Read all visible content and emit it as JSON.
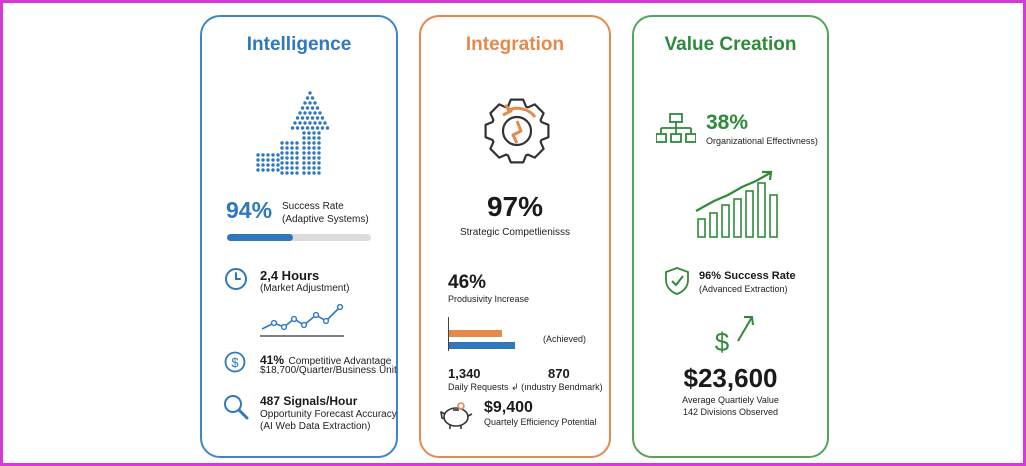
{
  "colors": {
    "blue": "#2f78c0",
    "orange": "#e58a4d",
    "green": "#2f8a3a",
    "frame": "#d63ad6"
  },
  "intelligence": {
    "title": "Intelligence",
    "success_value": "94%",
    "success_label": "Success Rate",
    "success_sub": "(Adaptive Systems)",
    "progress_fraction": 0.46,
    "hours_value": "2,4 Hours",
    "hours_sub": "(Market Adjustment)",
    "adv_value": "41%",
    "adv_label": "Competitive Advantage",
    "adv_sub": "$18,700/Quarter/Business Unit",
    "signals_value": "487 Signals/Hour",
    "signals_sub1": "Opportunity Forecast Accuracy",
    "signals_sub2": "(AI Web Data Extraction)",
    "icons": [
      "dotted-arrow-icon",
      "clock-icon",
      "dollar-circle-icon",
      "magnifier-icon"
    ]
  },
  "integration": {
    "title": "Integration",
    "main_value": "97%",
    "main_label": "Strategic Competlienisss",
    "prod_value": "46%",
    "prod_label": "Produsivity Increase",
    "bar_achieved_label": "(Achieved)",
    "bar_values": [
      0.63,
      0.79
    ],
    "left_value": "1,340",
    "right_value": "870",
    "compare_label": "Daily Requests ↲ (ındustry Bendmark)",
    "savings_value": "$9,400",
    "savings_label": "Quartely Efficiency Potential",
    "icons": [
      "gear-icon",
      "piggy-bank-icon"
    ]
  },
  "value_creation": {
    "title": "Value Creation",
    "org_value": "38%",
    "org_label": "Organizational Effectivness)",
    "rate_value": "96% Success Rate",
    "rate_sub": "(Advanced Extraction)",
    "money_value": "$23,600",
    "money_label1": "Average Quartiely Value",
    "money_label2": "142 Divisions Observed",
    "icons": [
      "org-chart-icon",
      "growth-bars-icon",
      "shield-check-icon",
      "dollar-arrow-icon"
    ]
  }
}
